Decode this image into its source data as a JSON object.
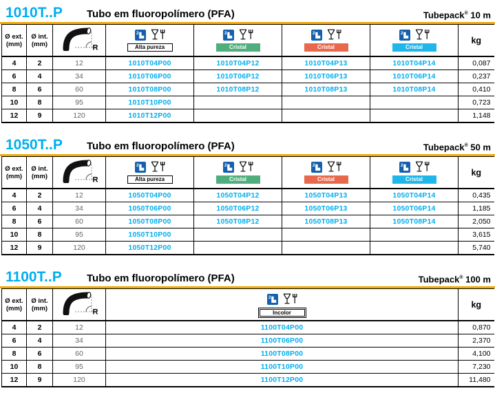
{
  "labels": {
    "ext1": "Ø ext.",
    "int1": "Ø int.",
    "mm": "(mm)",
    "kg": "kg",
    "radius_r": "R"
  },
  "colors": {
    "accent_cyan": "#00AEEF",
    "rule_orange": "#F2A900",
    "badge_green": "#4FAE7C",
    "badge_red": "#E8684C",
    "badge_cyan": "#1FB6EA",
    "icon_blue": "#1560AE"
  },
  "sections": [
    {
      "code": "1010T..P",
      "subtitle": "Tubo em fluoropolímero (PFA)",
      "tubepack": {
        "name": "Tubepack",
        "reg": "®",
        "qty": "10 m"
      },
      "columns": [
        {
          "badge": "Alta pureza",
          "style": "outline"
        },
        {
          "badge": "Cristal",
          "style": "green"
        },
        {
          "badge": "Cristal",
          "style": "red"
        },
        {
          "badge": "Cristal",
          "style": "cyan"
        }
      ],
      "rows": [
        {
          "ext": "4",
          "int": "2",
          "r": "12",
          "codes": [
            "1010T04P00",
            "1010T04P12",
            "1010T04P13",
            "1010T04P14"
          ],
          "kg": "0,087"
        },
        {
          "ext": "6",
          "int": "4",
          "r": "34",
          "codes": [
            "1010T06P00",
            "1010T06P12",
            "1010T06P13",
            "1010T06P14"
          ],
          "kg": "0,237"
        },
        {
          "ext": "8",
          "int": "6",
          "r": "60",
          "codes": [
            "1010T08P00",
            "1010T08P12",
            "1010T08P13",
            "1010T08P14"
          ],
          "kg": "0,410"
        },
        {
          "ext": "10",
          "int": "8",
          "r": "95",
          "codes": [
            "1010T10P00",
            "",
            "",
            ""
          ],
          "kg": "0,723"
        },
        {
          "ext": "12",
          "int": "9",
          "r": "120",
          "codes": [
            "1010T12P00",
            "",
            "",
            ""
          ],
          "kg": "1,148"
        }
      ]
    },
    {
      "code": "1050T..P",
      "subtitle": "Tubo em fluoropolímero (PFA)",
      "tubepack": {
        "name": "Tubepack",
        "reg": "®",
        "qty": "50 m"
      },
      "columns": [
        {
          "badge": "Alta pureza",
          "style": "outline"
        },
        {
          "badge": "Cristal",
          "style": "green"
        },
        {
          "badge": "Cristal",
          "style": "red"
        },
        {
          "badge": "Cristal",
          "style": "cyan"
        }
      ],
      "rows": [
        {
          "ext": "4",
          "int": "2",
          "r": "12",
          "codes": [
            "1050T04P00",
            "1050T04P12",
            "1050T04P13",
            "1050T04P14"
          ],
          "kg": "0,435"
        },
        {
          "ext": "6",
          "int": "4",
          "r": "34",
          "codes": [
            "1050T06P00",
            "1050T06P12",
            "1050T06P13",
            "1050T06P14"
          ],
          "kg": "1,185"
        },
        {
          "ext": "8",
          "int": "6",
          "r": "60",
          "codes": [
            "1050T08P00",
            "1050T08P12",
            "1050T08P13",
            "1050T08P14"
          ],
          "kg": "2,050"
        },
        {
          "ext": "10",
          "int": "8",
          "r": "95",
          "codes": [
            "1050T10P00",
            "",
            "",
            ""
          ],
          "kg": "3,615"
        },
        {
          "ext": "12",
          "int": "9",
          "r": "120",
          "codes": [
            "1050T12P00",
            "",
            "",
            ""
          ],
          "kg": "5,740"
        }
      ]
    },
    {
      "code": "1100T..P",
      "subtitle": "Tubo em fluoropolímero (PFA)",
      "tubepack": {
        "name": "Tubepack",
        "reg": "®",
        "qty": "100 m"
      },
      "columns": [
        {
          "badge": "Incolor",
          "style": "incolor"
        }
      ],
      "rows": [
        {
          "ext": "4",
          "int": "2",
          "r": "12",
          "codes": [
            "1100T04P00"
          ],
          "kg": "0,870"
        },
        {
          "ext": "6",
          "int": "4",
          "r": "34",
          "codes": [
            "1100T06P00"
          ],
          "kg": "2,370"
        },
        {
          "ext": "8",
          "int": "6",
          "r": "60",
          "codes": [
            "1100T08P00"
          ],
          "kg": "4,100"
        },
        {
          "ext": "10",
          "int": "8",
          "r": "95",
          "codes": [
            "1100T10P00"
          ],
          "kg": "7,230"
        },
        {
          "ext": "12",
          "int": "9",
          "r": "120",
          "codes": [
            "1100T12P00"
          ],
          "kg": "11,480"
        }
      ]
    }
  ]
}
